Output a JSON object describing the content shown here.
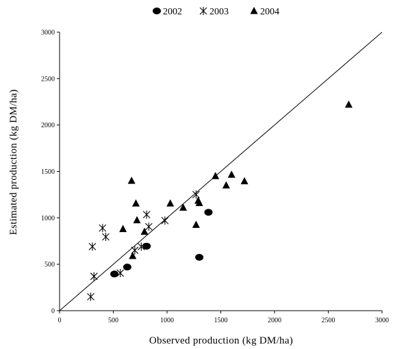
{
  "chart_data": {
    "type": "scatter",
    "title": "",
    "xlabel": "Observed production (kg DM/ha)",
    "ylabel": "Estimated production (kg DM/ha)",
    "xlim": [
      0,
      3000
    ],
    "ylim": [
      0,
      3000
    ],
    "xticks": [
      0,
      500,
      1000,
      1500,
      2000,
      2500,
      3000
    ],
    "yticks": [
      0,
      500,
      1000,
      1500,
      2000,
      2500,
      3000
    ],
    "grid": false,
    "legend_position": "top",
    "reference_line": {
      "type": "1:1",
      "from": [
        0,
        0
      ],
      "to": [
        3000,
        3000
      ]
    },
    "series": [
      {
        "name": "2002",
        "marker": "circle",
        "color": "#000000",
        "points": [
          [
            510,
            395
          ],
          [
            630,
            470
          ],
          [
            810,
            695
          ],
          [
            1300,
            575
          ],
          [
            1385,
            1060
          ]
        ]
      },
      {
        "name": "2003",
        "marker": "asterisk",
        "color": "#000000",
        "points": [
          [
            290,
            150
          ],
          [
            305,
            690
          ],
          [
            320,
            370
          ],
          [
            400,
            890
          ],
          [
            430,
            795
          ],
          [
            565,
            405
          ],
          [
            700,
            650
          ],
          [
            760,
            690
          ],
          [
            810,
            1035
          ],
          [
            830,
            905
          ],
          [
            980,
            970
          ],
          [
            1270,
            1250
          ]
        ]
      },
      {
        "name": "2004",
        "marker": "triangle",
        "color": "#000000",
        "points": [
          [
            590,
            880
          ],
          [
            670,
            1400
          ],
          [
            680,
            590
          ],
          [
            710,
            1155
          ],
          [
            720,
            975
          ],
          [
            790,
            850
          ],
          [
            1030,
            1155
          ],
          [
            1150,
            1110
          ],
          [
            1270,
            925
          ],
          [
            1290,
            1185
          ],
          [
            1300,
            1160
          ],
          [
            1450,
            1450
          ],
          [
            1550,
            1350
          ],
          [
            1600,
            1465
          ],
          [
            1720,
            1395
          ],
          [
            2690,
            2220
          ]
        ]
      }
    ]
  }
}
